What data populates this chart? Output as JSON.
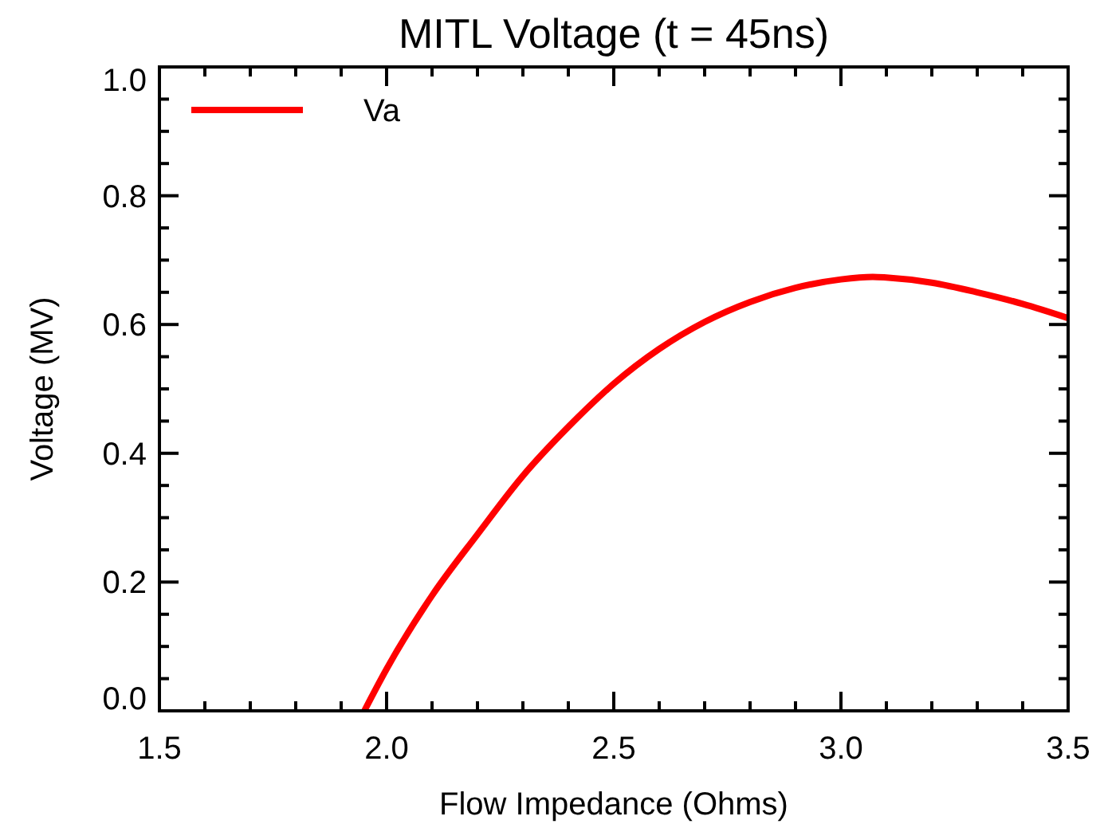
{
  "chart_data": {
    "type": "line",
    "title": "MITL Voltage (t = 45ns)",
    "xlabel": "Flow Impedance (Ohms)",
    "ylabel": "Voltage (MV)",
    "xlim": [
      1.5,
      3.5
    ],
    "ylim": [
      0,
      1
    ],
    "xticks": [
      {
        "value": 1.5,
        "label": "1.5"
      },
      {
        "value": 1.6,
        "label": null
      },
      {
        "value": 1.7,
        "label": null
      },
      {
        "value": 1.8,
        "label": null
      },
      {
        "value": 1.9,
        "label": null
      },
      {
        "value": 2.0,
        "label": "2.0"
      },
      {
        "value": 2.1,
        "label": null
      },
      {
        "value": 2.2,
        "label": null
      },
      {
        "value": 2.3,
        "label": null
      },
      {
        "value": 2.4,
        "label": null
      },
      {
        "value": 2.5,
        "label": "2.5"
      },
      {
        "value": 2.6,
        "label": null
      },
      {
        "value": 2.7,
        "label": null
      },
      {
        "value": 2.8,
        "label": null
      },
      {
        "value": 2.9,
        "label": null
      },
      {
        "value": 3.0,
        "label": "3.0"
      },
      {
        "value": 3.1,
        "label": null
      },
      {
        "value": 3.2,
        "label": null
      },
      {
        "value": 3.3,
        "label": null
      },
      {
        "value": 3.4,
        "label": null
      },
      {
        "value": 3.5,
        "label": "3.5"
      }
    ],
    "yticks": [
      {
        "value": 0,
        "label": "0.0"
      },
      {
        "value": 0.05,
        "label": null
      },
      {
        "value": 0.1,
        "label": null
      },
      {
        "value": 0.15,
        "label": null
      },
      {
        "value": 0.2,
        "label": "0.2"
      },
      {
        "value": 0.25,
        "label": null
      },
      {
        "value": 0.3,
        "label": null
      },
      {
        "value": 0.35,
        "label": null
      },
      {
        "value": 0.4,
        "label": "0.4"
      },
      {
        "value": 0.45,
        "label": null
      },
      {
        "value": 0.5,
        "label": null
      },
      {
        "value": 0.55,
        "label": null
      },
      {
        "value": 0.6,
        "label": "0.6"
      },
      {
        "value": 0.65,
        "label": null
      },
      {
        "value": 0.7,
        "label": null
      },
      {
        "value": 0.75,
        "label": null
      },
      {
        "value": 0.8,
        "label": "0.8"
      },
      {
        "value": 0.85,
        "label": null
      },
      {
        "value": 0.9,
        "label": null
      },
      {
        "value": 0.95,
        "label": null
      },
      {
        "value": 1.0,
        "label": "1.0"
      }
    ],
    "grid": false,
    "legend": "top left",
    "marker": "none",
    "line_style": "solid",
    "x": [
      1.951,
      2.0,
      2.1,
      2.2,
      2.3,
      2.4,
      2.5,
      2.6,
      2.7,
      2.8,
      2.9,
      3.0,
      3.07,
      3.1,
      3.2,
      3.3,
      3.4,
      3.5
    ],
    "series": [
      {
        "name": "Va",
        "color": "#ff0000",
        "values": [
          0,
          0.065,
          0.179,
          0.274,
          0.365,
          0.441,
          0.508,
          0.562,
          0.604,
          0.635,
          0.657,
          0.67,
          0.674,
          0.673,
          0.665,
          0.65,
          0.632,
          0.61
        ]
      }
    ]
  }
}
